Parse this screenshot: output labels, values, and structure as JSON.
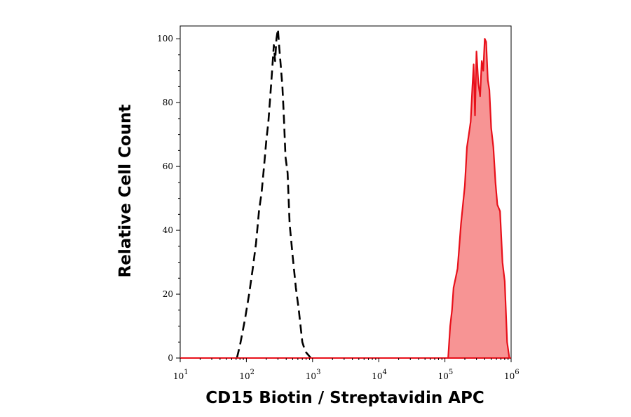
{
  "chart_data": {
    "type": "area",
    "xlabel": "CD15 Biotin / Streptavidin APC",
    "ylabel": "Relative Cell Count",
    "x_scale": "log",
    "xlim": [
      10,
      1000000
    ],
    "ylim": [
      0,
      104
    ],
    "x_ticks": [
      {
        "value": 10,
        "base": "10",
        "exp": "1"
      },
      {
        "value": 100,
        "base": "10",
        "exp": "2"
      },
      {
        "value": 1000,
        "base": "10",
        "exp": "3"
      },
      {
        "value": 10000,
        "base": "10",
        "exp": "4"
      },
      {
        "value": 100000,
        "base": "10",
        "exp": "5"
      },
      {
        "value": 1000000,
        "base": "10",
        "exp": "6"
      }
    ],
    "y_ticks": [
      "0",
      "20",
      "40",
      "60",
      "80",
      "100"
    ],
    "grid": false,
    "series": [
      {
        "style": "dashed",
        "color": "#000000",
        "filled": false,
        "x": [
          72,
          80,
          95,
          110,
          125,
          140,
          155,
          170,
          185,
          200,
          215,
          230,
          245,
          260,
          272,
          285,
          300,
          315,
          330,
          350,
          370,
          390,
          420,
          450,
          500,
          560,
          620,
          700,
          780,
          860,
          940
        ],
        "y": [
          0,
          4,
          12,
          20,
          28,
          36,
          46,
          52,
          60,
          68,
          74,
          82,
          90,
          98,
          93,
          100,
          103,
          97,
          92,
          85,
          75,
          63,
          58,
          42,
          32,
          22,
          15,
          5,
          2,
          1,
          0
        ]
      },
      {
        "style": "solid",
        "color": "#e8101a",
        "fill": "#f79494",
        "filled": true,
        "x": [
          112000,
          120000,
          128000,
          135000,
          145000,
          155000,
          165000,
          175000,
          185000,
          200000,
          215000,
          230000,
          245000,
          260000,
          272000,
          285000,
          300000,
          320000,
          340000,
          360000,
          380000,
          400000,
          420000,
          445000,
          470000,
          500000,
          540000,
          580000,
          620000,
          680000,
          740000,
          800000,
          870000,
          940000
        ],
        "y": [
          0,
          10,
          15,
          22,
          25,
          28,
          35,
          42,
          47,
          54,
          66,
          70,
          74,
          85,
          92,
          76,
          96,
          86,
          82,
          93,
          90,
          100,
          99,
          87,
          84,
          72,
          66,
          55,
          48,
          46,
          30,
          24,
          5,
          0
        ]
      }
    ]
  }
}
